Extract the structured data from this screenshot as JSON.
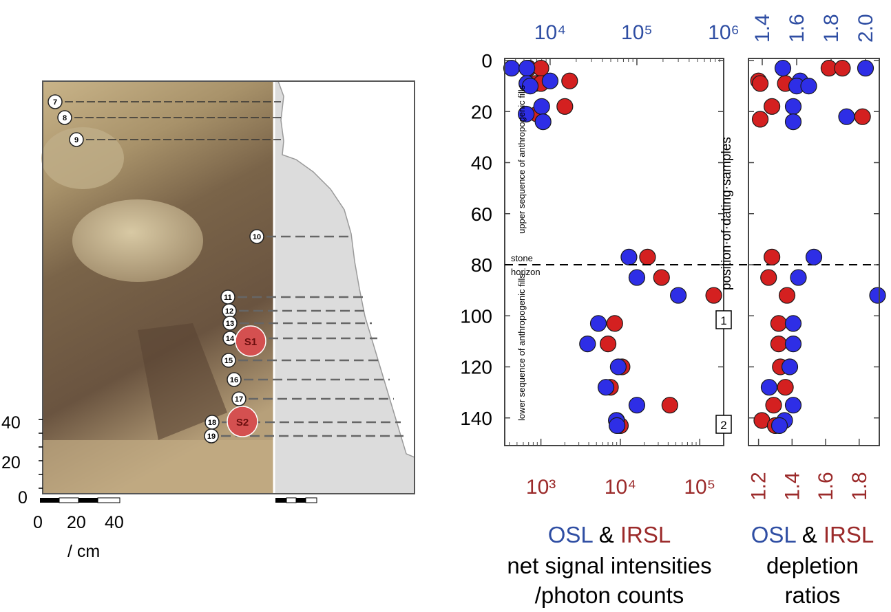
{
  "colors": {
    "osl": "#2f4ea3",
    "irsl": "#9b2a2a",
    "osl_fill": "#2e2ee6",
    "irsl_fill": "#d42020",
    "profile_fill": "#dcdcdc"
  },
  "profile": {
    "scale_labels": [
      "0",
      "20",
      "40"
    ],
    "scale_unit": "/ cm",
    "depth_ticks": [
      "40",
      "20",
      "0"
    ],
    "sample_markers": [
      "7",
      "8",
      "9",
      "10",
      "11",
      "12",
      "13",
      "14",
      "15",
      "16",
      "17",
      "18",
      "19"
    ],
    "large_markers": [
      "S1",
      "S2"
    ]
  },
  "chart_data": [
    {
      "type": "scatter",
      "name": "net-signal-intensities",
      "y_ticks": [
        "0",
        "20",
        "40",
        "60",
        "80",
        "100",
        "120",
        "140"
      ],
      "ylim": [
        0,
        150
      ],
      "top_axis": {
        "scale": "log",
        "range": [
          3000,
          1000000
        ],
        "tick_labels": [
          "10⁴",
          "10⁵",
          "10⁶"
        ],
        "tick_values": [
          10000,
          100000,
          1000000
        ]
      },
      "bottom_axis": {
        "scale": "log",
        "range": [
          350,
          200000
        ],
        "tick_labels": [
          "10³",
          "10⁴",
          "10⁵"
        ],
        "tick_values": [
          1000,
          10000,
          100000
        ]
      },
      "annotations": {
        "upper": "upper sequence of anthropogenic fills",
        "lower": "lower sequence of anthropogenic fills",
        "stone_1": "stone",
        "stone_2": "horizon",
        "position": "position·of·dating·samples",
        "marker_1": "1",
        "marker_2": "2"
      },
      "stone_horizon_depth": 80,
      "series": [
        {
          "name": "IRSL",
          "axis": "bottom",
          "points": [
            [
              700,
              3
            ],
            [
              1000,
              3
            ],
            [
              850,
              9
            ],
            [
              1000,
              9
            ],
            [
              2300,
              8
            ],
            [
              2000,
              18
            ],
            [
              900,
              21
            ],
            [
              22000,
              77
            ],
            [
              33000,
              85
            ],
            [
              150000,
              92
            ],
            [
              8500,
              103
            ],
            [
              7000,
              111
            ],
            [
              10500,
              120
            ],
            [
              7500,
              128
            ],
            [
              42000,
              135
            ],
            [
              9000,
              141
            ],
            [
              10000,
              143
            ]
          ]
        },
        {
          "name": "OSL",
          "axis": "top",
          "points": [
            [
              3600,
              3
            ],
            [
              5400,
              3
            ],
            [
              5400,
              9
            ],
            [
              5900,
              10
            ],
            [
              10000,
              8
            ],
            [
              8000,
              18
            ],
            [
              5300,
              21
            ],
            [
              8300,
              24
            ],
            [
              81000,
              77
            ],
            [
              100000,
              85
            ],
            [
              300000,
              92
            ],
            [
              36000,
              103
            ],
            [
              27000,
              111
            ],
            [
              61000,
              120
            ],
            [
              44000,
              128
            ],
            [
              100000,
              135
            ],
            [
              58000,
              141
            ],
            [
              59000,
              143
            ]
          ]
        }
      ]
    },
    {
      "type": "scatter",
      "name": "depletion-ratios",
      "ylim": [
        0,
        150
      ],
      "top_axis": {
        "range": [
          1.32,
          2.08
        ],
        "tick_labels": [
          "1.4",
          "1.6",
          "1.8",
          "2.0"
        ],
        "tick_values": [
          1.4,
          1.6,
          1.8,
          2.0
        ]
      },
      "bottom_axis": {
        "range": [
          1.14,
          1.92
        ],
        "tick_labels": [
          "1.2",
          "1.4",
          "1.6",
          "1.8"
        ],
        "tick_values": [
          1.2,
          1.4,
          1.6,
          1.8
        ]
      },
      "stone_horizon_depth": 80,
      "series": [
        {
          "name": "IRSL",
          "axis": "bottom",
          "points": [
            [
              1.62,
              3
            ],
            [
              1.7,
              3
            ],
            [
              1.2,
              8
            ],
            [
              1.21,
              9
            ],
            [
              1.36,
              9
            ],
            [
              1.28,
              18
            ],
            [
              1.82,
              22
            ],
            [
              1.21,
              23
            ],
            [
              1.28,
              77
            ],
            [
              1.26,
              85
            ],
            [
              1.37,
              92
            ],
            [
              1.32,
              103
            ],
            [
              1.32,
              111
            ],
            [
              1.33,
              120
            ],
            [
              1.36,
              128
            ],
            [
              1.29,
              135
            ],
            [
              1.22,
              141
            ],
            [
              1.3,
              143
            ]
          ]
        },
        {
          "name": "OSL",
          "axis": "top",
          "points": [
            [
              1.52,
              3
            ],
            [
              2.0,
              3
            ],
            [
              1.62,
              8
            ],
            [
              1.6,
              10
            ],
            [
              1.67,
              10
            ],
            [
              1.58,
              18
            ],
            [
              1.89,
              22
            ],
            [
              1.58,
              24
            ],
            [
              1.7,
              77
            ],
            [
              1.61,
              85
            ],
            [
              2.07,
              92
            ],
            [
              1.58,
              103
            ],
            [
              1.58,
              111
            ],
            [
              1.56,
              120
            ],
            [
              1.44,
              128
            ],
            [
              1.58,
              135
            ],
            [
              1.53,
              141
            ],
            [
              1.5,
              143
            ]
          ]
        }
      ]
    }
  ],
  "legend": {
    "osl": "OSL",
    "amp": "&",
    "irsl": "IRSL",
    "left_line1": "net signal intensities",
    "left_line2": "/photon counts",
    "right_line1": "depletion",
    "right_line2": "ratios"
  }
}
